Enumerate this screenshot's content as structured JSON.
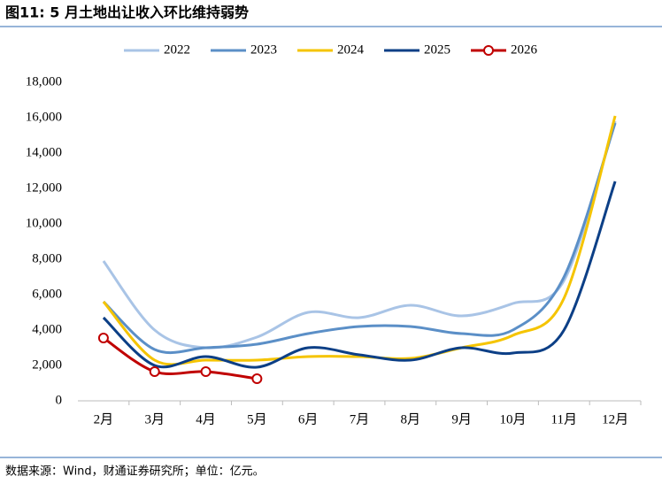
{
  "chart_data": {
    "type": "line",
    "title": "图11: 5 月土地出让收入环比维持弱势",
    "source": "数据来源：Wind，财通证券研究所；单位：亿元。",
    "categories": [
      "2月",
      "3月",
      "4月",
      "5月",
      "6月",
      "7月",
      "8月",
      "9月",
      "10月",
      "11月",
      "12月"
    ],
    "series": [
      {
        "name": "2022",
        "color": "#a9c4e6",
        "values": [
          7900,
          4000,
          3000,
          3600,
          5000,
          4700,
          5400,
          4800,
          5500,
          6800,
          15800
        ]
      },
      {
        "name": "2023",
        "color": "#5b8fc7",
        "values": [
          5600,
          2900,
          3000,
          3200,
          3800,
          4200,
          4200,
          3800,
          4000,
          7000,
          15700
        ]
      },
      {
        "name": "2024",
        "color": "#f5c400",
        "values": [
          5600,
          2300,
          2300,
          2300,
          2500,
          2500,
          2400,
          3000,
          3700,
          5800,
          16100
        ]
      },
      {
        "name": "2025",
        "color": "#0c3f86",
        "values": [
          4700,
          2000,
          2500,
          1900,
          3000,
          2600,
          2300,
          3000,
          2700,
          4000,
          12400
        ]
      },
      {
        "name": "2026",
        "color": "#c00000",
        "markers": true,
        "values": [
          3550,
          1650,
          1650,
          1250,
          null,
          null,
          null,
          null,
          null,
          null,
          null
        ]
      }
    ],
    "ylim": [
      0,
      18000
    ],
    "yticks": [
      0,
      {
        "value": 2000,
        "label": "2,000"
      },
      {
        "value": 4000,
        "label": "4,000"
      },
      {
        "value": 6000,
        "label": "6,000"
      },
      {
        "value": 8000,
        "label": "8,000"
      },
      {
        "value": 10000,
        "label": "10,000"
      },
      {
        "value": 12000,
        "label": "12,000"
      },
      {
        "value": 14000,
        "label": "14,000"
      },
      {
        "value": 16000,
        "label": "16,000"
      },
      {
        "value": 18000,
        "label": "18,000"
      }
    ],
    "grid": false,
    "legend": "top"
  }
}
